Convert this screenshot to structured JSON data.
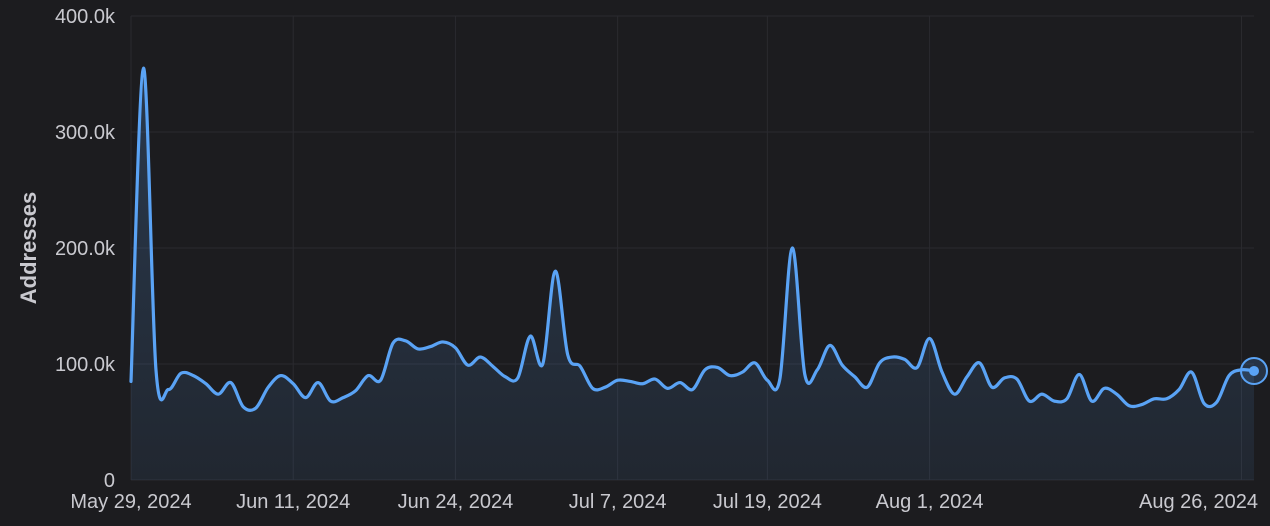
{
  "chart_data": {
    "type": "area",
    "ylabel": "Addresses",
    "ylim": [
      0,
      400000
    ],
    "y_ticks": [
      {
        "value": 0,
        "label": "0"
      },
      {
        "value": 100000,
        "label": "100.0k"
      },
      {
        "value": 200000,
        "label": "200.0k"
      },
      {
        "value": 300000,
        "label": "300.0k"
      },
      {
        "value": 400000,
        "label": "400.0k"
      }
    ],
    "x_range": [
      "2024-05-29",
      "2024-08-27"
    ],
    "x_ticks": [
      {
        "date": "2024-05-29",
        "label": "May 29, 2024"
      },
      {
        "date": "2024-06-11",
        "label": "Jun 11, 2024"
      },
      {
        "date": "2024-06-24",
        "label": "Jun 24, 2024"
      },
      {
        "date": "2024-07-07",
        "label": "Jul 7, 2024"
      },
      {
        "date": "2024-07-19",
        "label": "Jul 19, 2024"
      },
      {
        "date": "2024-08-01",
        "label": "Aug 1, 2024"
      },
      {
        "date": "2024-08-26",
        "label": "Aug 26, 2024"
      }
    ],
    "grid": true,
    "line_color": "#5aa3f5",
    "fill_color": "#5aa3f5",
    "series": [
      {
        "x": [
          "2024-05-29",
          "2024-05-30",
          "2024-05-31",
          "2024-06-01",
          "2024-06-02",
          "2024-06-03",
          "2024-06-04",
          "2024-06-05",
          "2024-06-06",
          "2024-06-07",
          "2024-06-08",
          "2024-06-09",
          "2024-06-10",
          "2024-06-11",
          "2024-06-12",
          "2024-06-13",
          "2024-06-14",
          "2024-06-15",
          "2024-06-16",
          "2024-06-17",
          "2024-06-18",
          "2024-06-19",
          "2024-06-20",
          "2024-06-21",
          "2024-06-22",
          "2024-06-23",
          "2024-06-24",
          "2024-06-25",
          "2024-06-26",
          "2024-06-27",
          "2024-06-28",
          "2024-06-29",
          "2024-06-30",
          "2024-07-01",
          "2024-07-02",
          "2024-07-03",
          "2024-07-04",
          "2024-07-05",
          "2024-07-06",
          "2024-07-07",
          "2024-07-08",
          "2024-07-09",
          "2024-07-10",
          "2024-07-11",
          "2024-07-12",
          "2024-07-13",
          "2024-07-14",
          "2024-07-15",
          "2024-07-16",
          "2024-07-17",
          "2024-07-18",
          "2024-07-19",
          "2024-07-20",
          "2024-07-21",
          "2024-07-22",
          "2024-07-23",
          "2024-07-24",
          "2024-07-25",
          "2024-07-26",
          "2024-07-27",
          "2024-07-28",
          "2024-07-29",
          "2024-07-30",
          "2024-07-31",
          "2024-08-01",
          "2024-08-02",
          "2024-08-03",
          "2024-08-04",
          "2024-08-05",
          "2024-08-06",
          "2024-08-07",
          "2024-08-08",
          "2024-08-09",
          "2024-08-10",
          "2024-08-11",
          "2024-08-12",
          "2024-08-13",
          "2024-08-14",
          "2024-08-15",
          "2024-08-16",
          "2024-08-17",
          "2024-08-18",
          "2024-08-19",
          "2024-08-20",
          "2024-08-21",
          "2024-08-22",
          "2024-08-23",
          "2024-08-24",
          "2024-08-25",
          "2024-08-26",
          "2024-08-27"
        ],
        "values": [
          85000,
          355000,
          95000,
          78000,
          92000,
          90000,
          83000,
          74000,
          84000,
          63000,
          62000,
          80000,
          90000,
          83000,
          71000,
          84000,
          68000,
          71000,
          77000,
          90000,
          86000,
          118000,
          120000,
          113000,
          115000,
          119000,
          114000,
          99000,
          106000,
          98000,
          89000,
          88000,
          124000,
          100000,
          180000,
          108000,
          98000,
          79000,
          80000,
          86000,
          85000,
          83000,
          87000,
          79000,
          84000,
          78000,
          95000,
          97000,
          90000,
          93000,
          101000,
          86000,
          87000,
          200000,
          91000,
          95000,
          116000,
          99000,
          89000,
          80000,
          101000,
          106000,
          104000,
          97000,
          122000,
          93000,
          74000,
          89000,
          101000,
          80000,
          88000,
          87000,
          68000,
          74000,
          68000,
          70000,
          91000,
          68000,
          79000,
          74000,
          64000,
          65000,
          70000,
          70000,
          78000,
          93000,
          66000,
          67000,
          90000,
          95000,
          94000
        ]
      }
    ]
  }
}
